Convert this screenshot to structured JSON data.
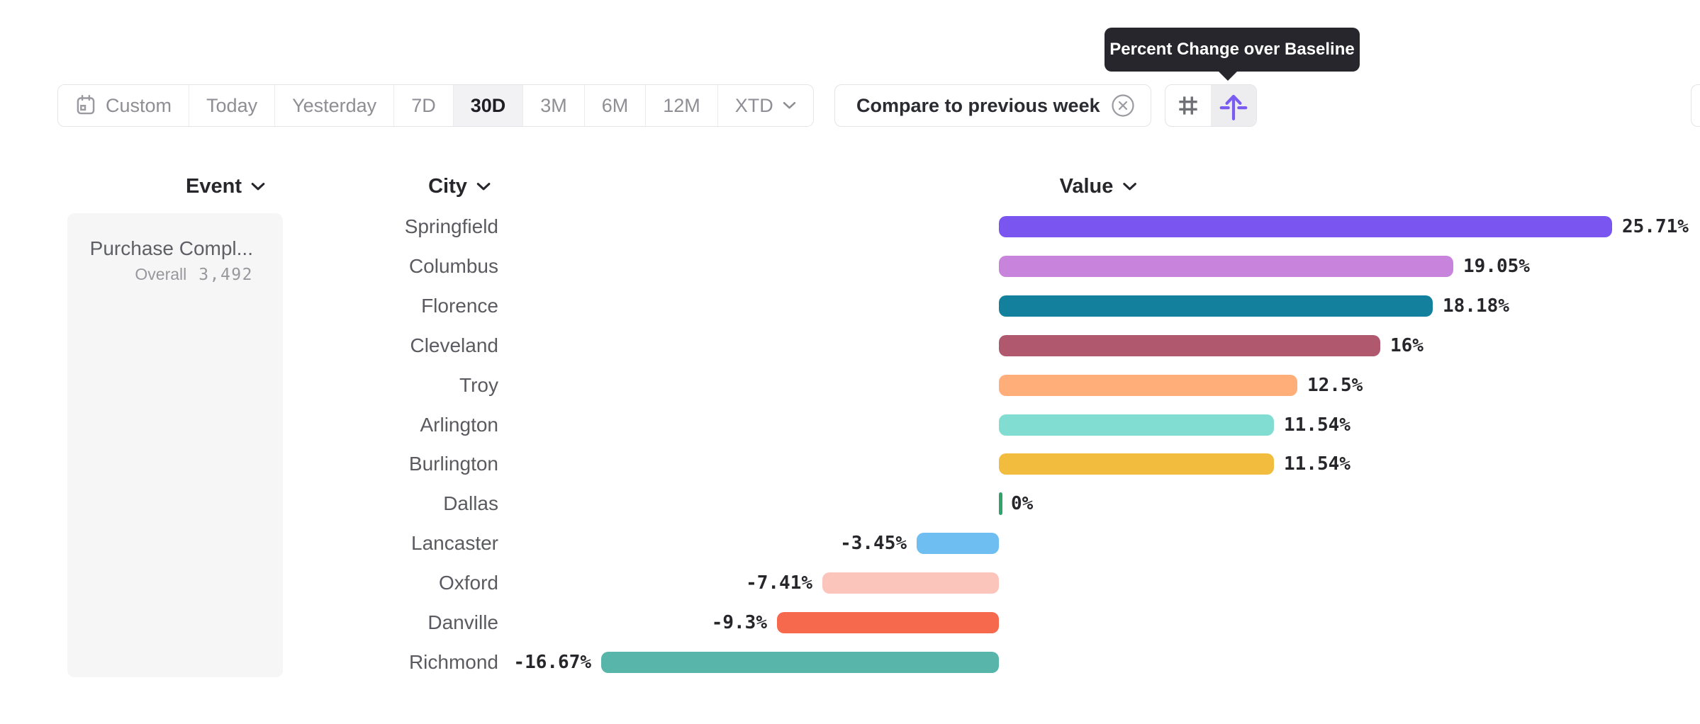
{
  "tooltip": {
    "text": "Percent Change over Baseline"
  },
  "toolbar": {
    "date_ranges": [
      "Custom",
      "Today",
      "Yesterday",
      "7D",
      "30D",
      "3M",
      "6M",
      "12M",
      "XTD"
    ],
    "selected_range": "30D",
    "compare_chip": {
      "label": "Compare to previous week",
      "icon": "x-circle-icon"
    },
    "view_toggle": {
      "options": [
        {
          "name": "numeric-view",
          "icon": "hash-icon",
          "selected": false
        },
        {
          "name": "percent-change-view",
          "icon": "arrow-up-baseline-icon",
          "selected": true
        }
      ],
      "accent_color": "#7A5CF0"
    }
  },
  "columns": {
    "event": "Event",
    "city": "City",
    "value": "Value"
  },
  "event_card": {
    "title": "Purchase Compl...",
    "overall_label": "Overall",
    "overall_value": "3,492"
  },
  "chart_data": {
    "type": "bar",
    "orientation": "horizontal",
    "title": "",
    "xlabel": "",
    "ylabel": "",
    "unit": "percent change over baseline",
    "xlim": [
      -16.67,
      25.71
    ],
    "categories": [
      "Springfield",
      "Columbus",
      "Florence",
      "Cleveland",
      "Troy",
      "Arlington",
      "Burlington",
      "Dallas",
      "Lancaster",
      "Oxford",
      "Danville",
      "Richmond"
    ],
    "values": [
      25.71,
      19.05,
      18.18,
      16,
      12.5,
      11.54,
      11.54,
      0,
      -3.45,
      -7.41,
      -9.3,
      -16.67
    ],
    "value_labels": [
      "25.71%",
      "19.05%",
      "18.18%",
      "16%",
      "12.5%",
      "11.54%",
      "11.54%",
      "0%",
      "-3.45%",
      "-7.41%",
      "-9.3%",
      "-16.67%"
    ],
    "bar_colors": [
      "#7B55F0",
      "#C884DC",
      "#13809E",
      "#B0586E",
      "#FFAD79",
      "#81DDD2",
      "#F2BC3F",
      "#2FA36B",
      "#6FBEF2",
      "#FBC5BC",
      "#F7694C",
      "#57B5AA"
    ],
    "legend": false,
    "grid": false
  }
}
